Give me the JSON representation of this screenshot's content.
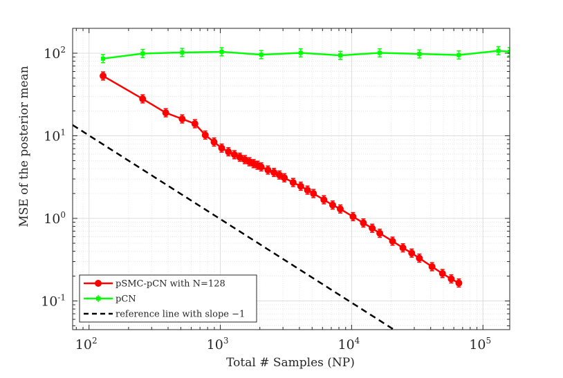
{
  "chart_data": {
    "type": "line",
    "scale": {
      "x": "log",
      "y": "log"
    },
    "xlabel": "Total # Samples (NP)",
    "ylabel": "MSE of the posterior mean",
    "xlim": [
      75,
      160000
    ],
    "ylim": [
      0.045,
      200
    ],
    "grid": true,
    "minor_grid": true,
    "legend_position": "bottom-left",
    "x_ticks": [
      {
        "value": 100,
        "base": "10",
        "exp": "2"
      },
      {
        "value": 1000,
        "base": "10",
        "exp": "3"
      },
      {
        "value": 10000,
        "base": "10",
        "exp": "4"
      },
      {
        "value": 100000,
        "base": "10",
        "exp": "5"
      }
    ],
    "y_ticks": [
      {
        "value": 0.1,
        "base": "10",
        "exp": "-1"
      },
      {
        "value": 1,
        "base": "10",
        "exp": "0"
      },
      {
        "value": 10,
        "base": "10",
        "exp": "1"
      },
      {
        "value": 100,
        "base": "10",
        "exp": "2"
      }
    ],
    "series": [
      {
        "name": "pSMC-pCN with N=128",
        "color": "#ff0000",
        "marker": "circle",
        "error_bars": true,
        "x": [
          128,
          256,
          384,
          512,
          640,
          768,
          896,
          1024,
          1152,
          1280,
          1408,
          1536,
          1664,
          1792,
          1920,
          2048,
          2304,
          2560,
          2816,
          3072,
          3584,
          4096,
          4608,
          5120,
          6144,
          7168,
          8192,
          10240,
          12288,
          14336,
          16384,
          20480,
          24576,
          28672,
          32768,
          40960,
          49152,
          57344,
          65536
        ],
        "y": [
          53,
          28,
          19,
          16,
          14,
          10.2,
          8.4,
          7.1,
          6.4,
          5.9,
          5.5,
          5.15,
          4.85,
          4.6,
          4.4,
          4.2,
          3.85,
          3.6,
          3.35,
          3.1,
          2.72,
          2.45,
          2.2,
          2.0,
          1.68,
          1.45,
          1.3,
          1.05,
          0.88,
          0.76,
          0.66,
          0.53,
          0.44,
          0.38,
          0.33,
          0.26,
          0.215,
          0.185,
          0.165
        ]
      },
      {
        "name": "pCN",
        "color": "#00ff00",
        "marker": "square",
        "error_bars": true,
        "x": [
          128,
          256,
          512,
          1024,
          2048,
          4096,
          8192,
          16384,
          32768,
          65536,
          131072,
          160000
        ],
        "y": [
          86,
          99,
          102,
          104,
          96,
          101,
          94,
          101,
          98,
          95,
          107,
          104
        ]
      },
      {
        "name": "reference line with slope −1",
        "color": "#000000",
        "marker": "none",
        "dashed": true,
        "x": [
          75,
          21000
        ],
        "y": [
          13.5,
          0.045
        ]
      }
    ]
  }
}
